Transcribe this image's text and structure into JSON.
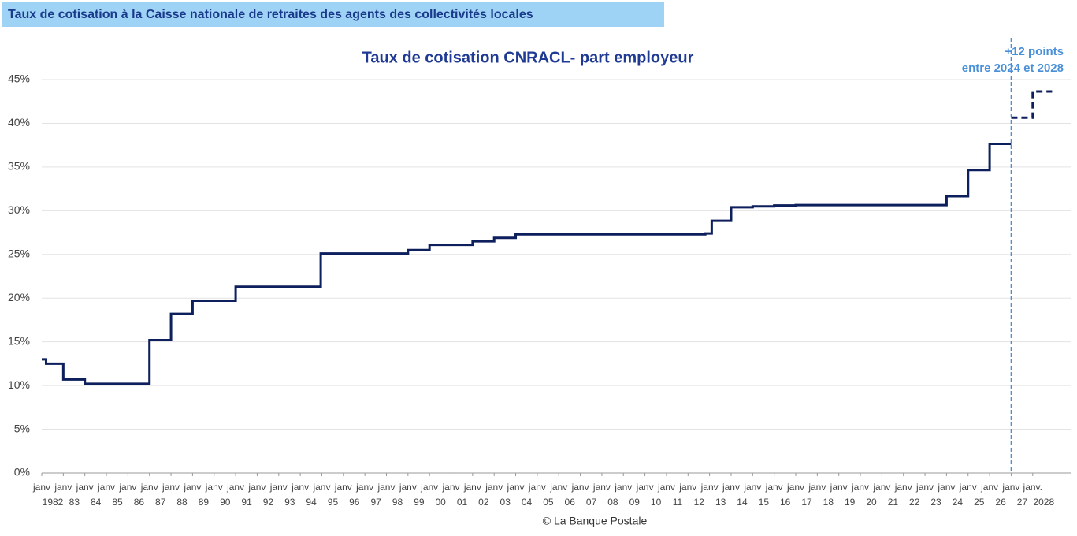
{
  "header": {
    "title": "Taux de cotisation à la Caisse nationale de retraites des agents des collectivités locales"
  },
  "chart_data": {
    "type": "line",
    "step": "post",
    "title": "Taux de cotisation CNRACL- part employeur",
    "source": "© La Banque Postale",
    "annotation": {
      "x": 2027,
      "lines": [
        "+12 points",
        "entre 2024 et 2028"
      ]
    },
    "xlim": [
      1982,
      2029.8
    ],
    "xticks": [
      {
        "value": 1982,
        "prefix": "janv",
        "label": "1982"
      },
      {
        "value": 1983,
        "prefix": "janv",
        "label": "83"
      },
      {
        "value": 1984,
        "prefix": "janv",
        "label": "84"
      },
      {
        "value": 1985,
        "prefix": "janv",
        "label": "85"
      },
      {
        "value": 1986,
        "prefix": "janv",
        "label": "86"
      },
      {
        "value": 1987,
        "prefix": "janv",
        "label": "87"
      },
      {
        "value": 1988,
        "prefix": "janv",
        "label": "88"
      },
      {
        "value": 1989,
        "prefix": "janv",
        "label": "89"
      },
      {
        "value": 1990,
        "prefix": "janv",
        "label": "90"
      },
      {
        "value": 1991,
        "prefix": "janv",
        "label": "91"
      },
      {
        "value": 1992,
        "prefix": "janv",
        "label": "92"
      },
      {
        "value": 1993,
        "prefix": "janv",
        "label": "93"
      },
      {
        "value": 1994,
        "prefix": "janv",
        "label": "94"
      },
      {
        "value": 1995,
        "prefix": "janv",
        "label": "95"
      },
      {
        "value": 1996,
        "prefix": "janv",
        "label": "96"
      },
      {
        "value": 1997,
        "prefix": "janv",
        "label": "97"
      },
      {
        "value": 1998,
        "prefix": "janv",
        "label": "98"
      },
      {
        "value": 1999,
        "prefix": "janv",
        "label": "99"
      },
      {
        "value": 2000,
        "prefix": "janv",
        "label": "00"
      },
      {
        "value": 2001,
        "prefix": "janv",
        "label": "01"
      },
      {
        "value": 2002,
        "prefix": "janv",
        "label": "02"
      },
      {
        "value": 2003,
        "prefix": "janv",
        "label": "03"
      },
      {
        "value": 2004,
        "prefix": "janv",
        "label": "04"
      },
      {
        "value": 2005,
        "prefix": "janv",
        "label": "05"
      },
      {
        "value": 2006,
        "prefix": "janv",
        "label": "06"
      },
      {
        "value": 2007,
        "prefix": "janv",
        "label": "07"
      },
      {
        "value": 2008,
        "prefix": "janv",
        "label": "08"
      },
      {
        "value": 2009,
        "prefix": "janv",
        "label": "09"
      },
      {
        "value": 2010,
        "prefix": "janv",
        "label": "10"
      },
      {
        "value": 2011,
        "prefix": "janv",
        "label": "11"
      },
      {
        "value": 2012,
        "prefix": "janv",
        "label": "12"
      },
      {
        "value": 2013,
        "prefix": "janv",
        "label": "13"
      },
      {
        "value": 2014,
        "prefix": "janv",
        "label": "14"
      },
      {
        "value": 2015,
        "prefix": "janv",
        "label": "15"
      },
      {
        "value": 2016,
        "prefix": "janv",
        "label": "16"
      },
      {
        "value": 2017,
        "prefix": "janv",
        "label": "17"
      },
      {
        "value": 2018,
        "prefix": "janv",
        "label": "18"
      },
      {
        "value": 2019,
        "prefix": "janv",
        "label": "19"
      },
      {
        "value": 2020,
        "prefix": "janv",
        "label": "20"
      },
      {
        "value": 2021,
        "prefix": "janv",
        "label": "21"
      },
      {
        "value": 2022,
        "prefix": "janv",
        "label": "22"
      },
      {
        "value": 2023,
        "prefix": "janv",
        "label": "23"
      },
      {
        "value": 2024,
        "prefix": "janv",
        "label": "24"
      },
      {
        "value": 2025,
        "prefix": "janv",
        "label": "25"
      },
      {
        "value": 2026,
        "prefix": "janv",
        "label": "26"
      },
      {
        "value": 2027,
        "prefix": "janv",
        "label": "27"
      },
      {
        "value": 2028,
        "prefix": "janv.",
        "label": "2028"
      }
    ],
    "ylim": [
      0,
      45
    ],
    "yticks": [
      {
        "value": 0,
        "label": "0%"
      },
      {
        "value": 5,
        "label": "5%"
      },
      {
        "value": 10,
        "label": "10%"
      },
      {
        "value": 15,
        "label": "15%"
      },
      {
        "value": 20,
        "label": "20%"
      },
      {
        "value": 25,
        "label": "25%"
      },
      {
        "value": 30,
        "label": "30%"
      },
      {
        "value": 35,
        "label": "35%"
      },
      {
        "value": 40,
        "label": "40%"
      },
      {
        "value": 45,
        "label": "45%"
      }
    ],
    "grid": true,
    "series": [
      {
        "color": "#0d1f5c",
        "dashed": false,
        "x": [
          1982,
          1982.2,
          1983,
          1984,
          1987,
          1988,
          1989,
          1991,
          1994.95,
          1999,
          2000,
          2002,
          2003,
          2004,
          2012.8,
          2013.1,
          2014,
          2015,
          2016,
          2017,
          2024,
          2025,
          2026,
          2027
        ],
        "values": [
          13.0,
          12.5,
          10.7,
          10.2,
          15.2,
          18.2,
          19.7,
          21.3,
          25.1,
          25.5,
          26.1,
          26.5,
          26.9,
          27.3,
          27.4,
          28.85,
          30.4,
          30.5,
          30.6,
          30.65,
          31.65,
          34.65,
          37.65,
          37.65
        ]
      },
      {
        "color": "#0d1f5c",
        "dashed": true,
        "x": [
          2027,
          2028,
          2028.9
        ],
        "values": [
          40.65,
          43.65,
          43.65
        ]
      }
    ]
  }
}
